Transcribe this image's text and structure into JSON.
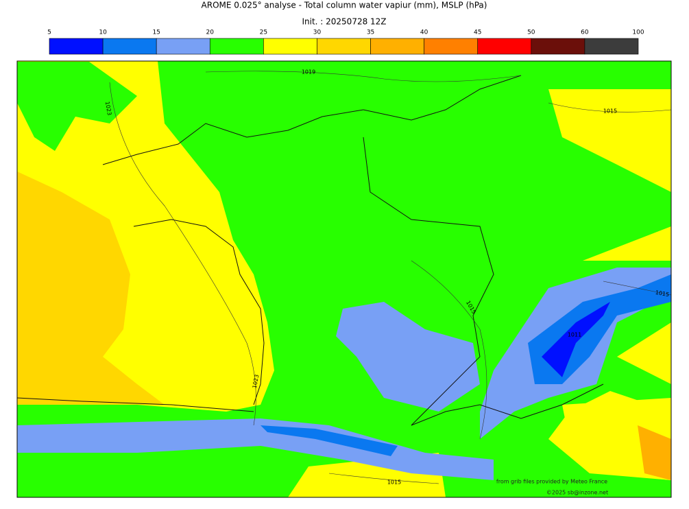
{
  "title": "AROME 0.025° analyse - Total column water vapiur (mm), MSLP (hPa)",
  "subtitle": "Init. : 20250728 12Z",
  "colorbar": {
    "ticks": [
      5,
      10,
      15,
      20,
      25,
      30,
      35,
      40,
      45,
      50,
      60,
      100
    ],
    "colors": [
      "#0010ff",
      "#0a78f0",
      "#78a0f5",
      "#28ff00",
      "#ffff00",
      "#ffd700",
      "#ffb000",
      "#ff8000",
      "#ff0000",
      "#6b0f0a",
      "#3c3c3c"
    ]
  },
  "isobar_labels": [
    "1019",
    "1023",
    "1015",
    "1015",
    "1015",
    "1011",
    "1023",
    "1015"
  ],
  "credits": [
    "from grib files provided by Meteo France",
    "©2025 sb@inzone.net"
  ]
}
